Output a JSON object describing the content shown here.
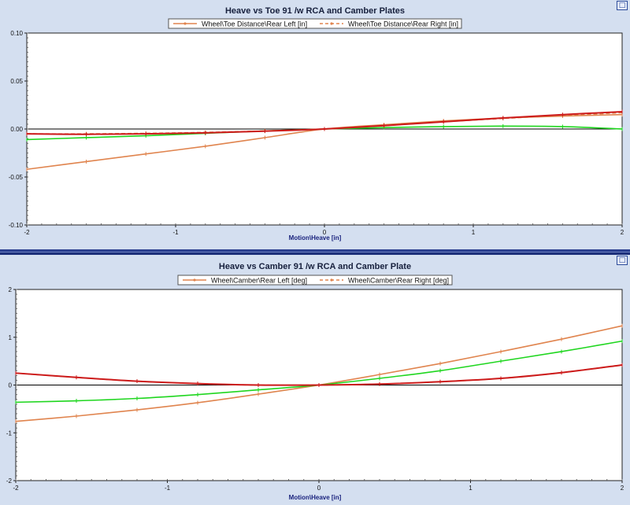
{
  "window": {
    "restore_icon": "restore-window-icon",
    "maximize_icon": "maximize-window-icon"
  },
  "colors": {
    "background": "#d4dff0",
    "plot_bg": "#ffffff",
    "left": "#e0844e",
    "right": "#cc1a1a",
    "green": "#1fd61f"
  },
  "chart_data": [
    {
      "type": "line",
      "title": "Heave vs Toe 91 /w RCA and Camber Plates",
      "xlabel": "Motion\\Heave [in]",
      "ylabel": "",
      "xlim": [
        -2,
        2
      ],
      "ylim": [
        -0.1,
        0.1
      ],
      "xticks": [
        "-2",
        "-1",
        "0",
        "1",
        "2"
      ],
      "yticks": [
        "-0.10",
        "-0.05",
        "0.00",
        "0.05",
        "0.10"
      ],
      "grid": false,
      "legend_position": "top-center",
      "legend": [
        "Wheel\\Toe Distance\\Rear Left [in]",
        "Wheel\\Toe Distance\\Rear Right [in]"
      ],
      "x": [
        -2,
        -1.6,
        -1.2,
        -0.8,
        -0.4,
        0,
        0.4,
        0.8,
        1.2,
        1.6,
        2
      ],
      "series": [
        {
          "name": "Wheel\\Toe Distance\\Rear Left [in]",
          "color": "#e0844e",
          "dash": "solid",
          "values": [
            -0.042,
            -0.034,
            -0.026,
            -0.018,
            -0.009,
            0.0,
            0.0045,
            0.0085,
            0.0115,
            0.0135,
            0.015
          ]
        },
        {
          "name": "Wheel\\Toe Distance\\Rear Right [in]",
          "color": "#e0844e",
          "dash": "dashed",
          "values": [
            -0.005,
            -0.005,
            -0.0045,
            -0.0035,
            -0.002,
            0.0,
            0.0035,
            0.0075,
            0.011,
            0.014,
            0.017
          ]
        },
        {
          "color": "#1fd61f",
          "dash": "solid",
          "values": [
            -0.011,
            -0.009,
            -0.007,
            -0.0045,
            -0.002,
            0.0,
            0.0015,
            0.0025,
            0.003,
            0.0025,
            0.0
          ]
        },
        {
          "color": "#cc1a1a",
          "dash": "solid",
          "values": [
            -0.005,
            -0.0055,
            -0.005,
            -0.004,
            -0.0022,
            0.0,
            0.0035,
            0.0075,
            0.0115,
            0.015,
            0.018
          ]
        }
      ]
    },
    {
      "type": "line",
      "title": "Heave vs Camber 91 /w RCA and Camber Plate",
      "xlabel": "Motion\\Heave [in]",
      "ylabel": "",
      "xlim": [
        -2,
        2
      ],
      "ylim": [
        -2,
        2
      ],
      "xticks": [
        "-2",
        "-1",
        "0",
        "1",
        "2"
      ],
      "yticks": [
        "-2",
        "-1",
        "0",
        "1",
        "2"
      ],
      "grid": false,
      "legend_position": "top-center",
      "legend": [
        "Wheel\\Camber\\Rear Left [deg]",
        "Wheel\\Camber\\Rear Right [deg]"
      ],
      "x": [
        -2,
        -1.6,
        -1.2,
        -0.8,
        -0.4,
        0,
        0.4,
        0.8,
        1.2,
        1.6,
        2
      ],
      "series": [
        {
          "name": "Wheel\\Camber\\Rear Left [deg]",
          "color": "#e0844e",
          "dash": "solid",
          "values": [
            -0.76,
            -0.65,
            -0.52,
            -0.37,
            -0.19,
            0.0,
            0.22,
            0.45,
            0.7,
            0.96,
            1.24
          ]
        },
        {
          "name": "Wheel\\Camber\\Rear Right [deg]",
          "color": "#e0844e",
          "dash": "dashed",
          "values": [
            0.25,
            0.16,
            0.08,
            0.03,
            0.0,
            0.0,
            0.02,
            0.07,
            0.14,
            0.26,
            0.42
          ]
        },
        {
          "color": "#1fd61f",
          "dash": "solid",
          "values": [
            -0.36,
            -0.33,
            -0.28,
            -0.2,
            -0.1,
            0.0,
            0.14,
            0.3,
            0.5,
            0.7,
            0.92
          ]
        },
        {
          "color": "#cc1a1a",
          "dash": "solid",
          "values": [
            0.25,
            0.16,
            0.08,
            0.03,
            0.0,
            0.0,
            0.02,
            0.07,
            0.14,
            0.26,
            0.42
          ]
        }
      ]
    }
  ]
}
